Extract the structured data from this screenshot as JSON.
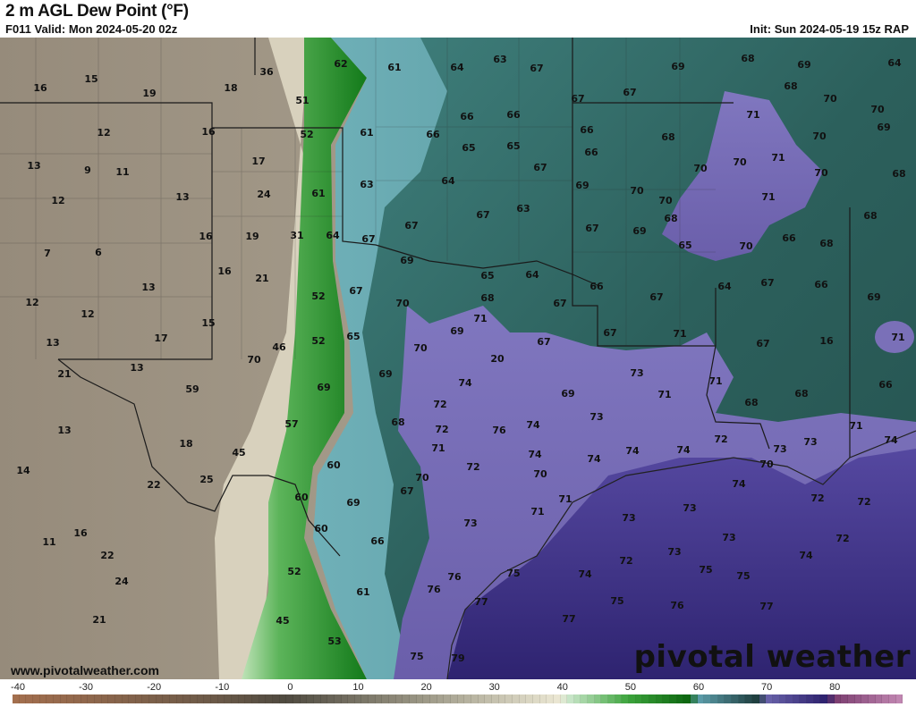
{
  "header": {
    "title": "2 m AGL Dew Point (°F)",
    "valid": "F011 Valid: Mon 2024-05-20 02z",
    "init": "Init: Sun 2024-05-19 15z RAP"
  },
  "footer": {
    "website": "www.pivotalweather.com",
    "logo_text": "pivotal weather"
  },
  "colorbar": {
    "ticks": [
      "-40",
      "-30",
      "-20",
      "-10",
      "0",
      "10",
      "20",
      "30",
      "40",
      "50",
      "60",
      "70",
      "80"
    ],
    "range": [
      -40,
      90
    ],
    "stops": [
      {
        "v": -40,
        "c": "#a46f4e"
      },
      {
        "v": -10,
        "c": "#6a5948"
      },
      {
        "v": 0,
        "c": "#4f4a40"
      },
      {
        "v": 20,
        "c": "#9c9886"
      },
      {
        "v": 40,
        "c": "#ece8d4"
      },
      {
        "v": 41,
        "c": "#cfe9cf"
      },
      {
        "v": 50,
        "c": "#3ca43c"
      },
      {
        "v": 59,
        "c": "#0b640e"
      },
      {
        "v": 60,
        "c": "#5ea0ad"
      },
      {
        "v": 69,
        "c": "#1c3a3a"
      },
      {
        "v": 70,
        "c": "#6a64ac"
      },
      {
        "v": 79,
        "c": "#2b1f6c"
      },
      {
        "v": 80,
        "c": "#7a3c6e"
      },
      {
        "v": 90,
        "c": "#c48ab4"
      }
    ]
  },
  "map": {
    "units": "°F",
    "colors": {
      "dry": "#9f9585",
      "beige": "#d9d3c0",
      "green": "#2f9a38",
      "teal": "#5d9ea6",
      "dark_teal": "#2d625e",
      "purple": "#7569b3",
      "gulf": "#3b2f7c"
    },
    "labels": [
      "16",
      "15",
      "19",
      "18",
      "36",
      "62",
      "61",
      "64",
      "63",
      "67",
      "69",
      "68",
      "69",
      "64",
      "51",
      "67",
      "67",
      "68",
      "70",
      "70",
      "71",
      "69",
      "12",
      "16",
      "52",
      "61",
      "66",
      "66",
      "66",
      "66",
      "68",
      "70",
      "13",
      "9",
      "11",
      "17",
      "65",
      "65",
      "67",
      "66",
      "70",
      "70",
      "71",
      "70",
      "68",
      "12",
      "13",
      "24",
      "61",
      "63",
      "64",
      "69",
      "70",
      "70",
      "71",
      "16",
      "19",
      "31",
      "64",
      "67",
      "67",
      "67",
      "63",
      "67",
      "69",
      "68",
      "68",
      "7",
      "6",
      "65",
      "70",
      "66",
      "68",
      "16",
      "21",
      "69",
      "65",
      "64",
      "66",
      "64",
      "67",
      "66",
      "13",
      "52",
      "67",
      "70",
      "68",
      "67",
      "67",
      "69",
      "12",
      "12",
      "71",
      "71",
      "13",
      "17",
      "15",
      "46",
      "52",
      "65",
      "69",
      "69",
      "67",
      "67",
      "71",
      "67",
      "16",
      "13",
      "21",
      "70",
      "70",
      "20",
      "59",
      "69",
      "73",
      "74",
      "69",
      "71",
      "71",
      "68",
      "68",
      "66",
      "13",
      "57",
      "68",
      "72",
      "72",
      "76",
      "74",
      "73",
      "71",
      "18",
      "45",
      "71",
      "74",
      "74",
      "74",
      "74",
      "72",
      "73",
      "73",
      "74",
      "14",
      "60",
      "72",
      "70",
      "70",
      "70",
      "22",
      "25",
      "67",
      "71",
      "74",
      "72",
      "72",
      "60",
      "69",
      "71",
      "73",
      "73",
      "16",
      "60",
      "73",
      "11",
      "66",
      "73",
      "72",
      "22",
      "73",
      "72",
      "74",
      "52",
      "75",
      "74",
      "75",
      "75",
      "24",
      "76",
      "61",
      "76",
      "45",
      "77",
      "75",
      "76",
      "77",
      "21",
      "77",
      "53",
      "75",
      "79"
    ]
  }
}
